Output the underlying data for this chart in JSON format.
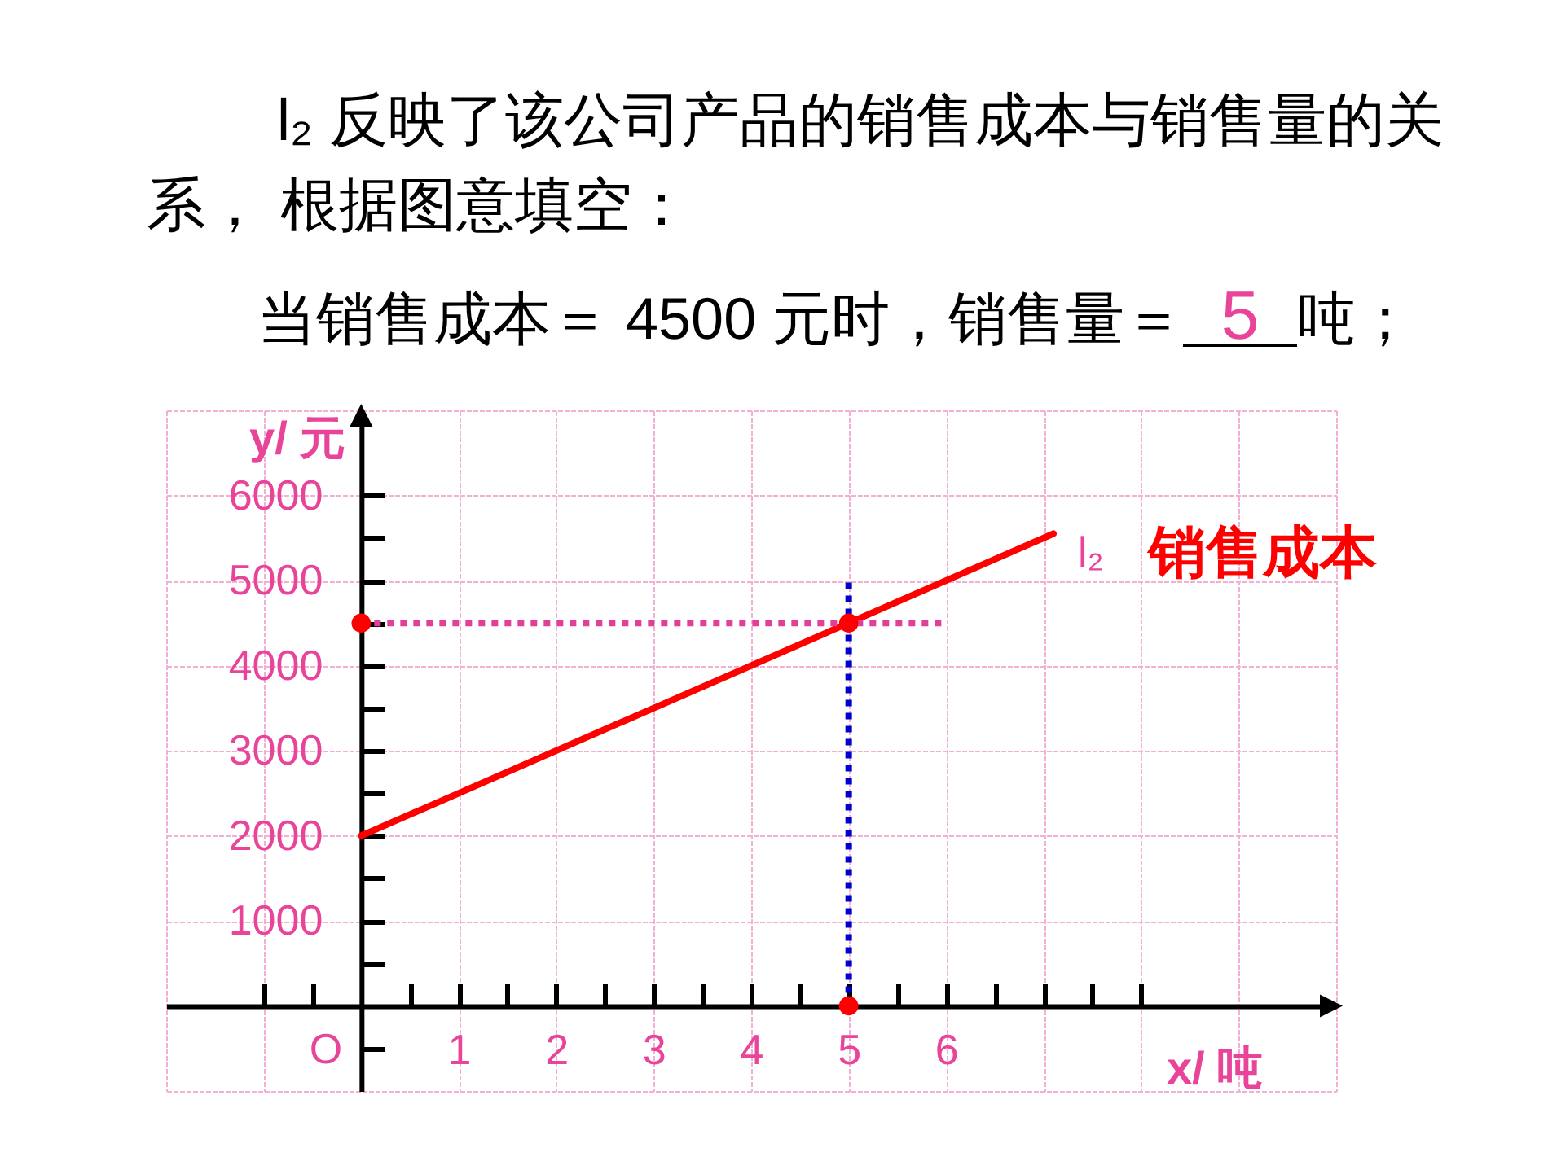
{
  "chart_data": {
    "type": "line",
    "title": "l₂ 反映了该公司产品的销售成本与销售量的关系， 根据图意填空：",
    "subtitle": "当销售成本＝ 4500 元时，销售量＝",
    "annotations": [
      "5",
      "吨；",
      "O",
      "销售成本"
    ],
    "xlabel": "x/ 吨",
    "ylabel": "y/ 元",
    "xlim": [
      -2,
      10
    ],
    "ylim": [
      -1000,
      7000
    ],
    "xticks": [
      {
        "value": -1,
        "label": null
      },
      {
        "value": -0.5,
        "label": null
      },
      {
        "value": 0.5,
        "label": null
      },
      1,
      {
        "value": 1.5,
        "label": null
      },
      2,
      {
        "value": 2.5,
        "label": null
      },
      3,
      {
        "value": 3.5,
        "label": null
      },
      4,
      {
        "value": 4.5,
        "label": null
      },
      5,
      {
        "value": 5.5,
        "label": null
      },
      6,
      {
        "value": 6.5,
        "label": null
      },
      {
        "value": 7,
        "label": null
      },
      {
        "value": 7.5,
        "label": null
      },
      {
        "value": 8,
        "label": null
      }
    ],
    "yticks": [
      {
        "value": -500,
        "label": null
      },
      {
        "value": 500,
        "label": null
      },
      1000,
      {
        "value": 1500,
        "label": null
      },
      2000,
      {
        "value": 2500,
        "label": null
      },
      3000,
      {
        "value": 3500,
        "label": null
      },
      4000,
      {
        "value": 4500,
        "label": null
      },
      5000,
      {
        "value": 5500,
        "label": null
      },
      6000
    ],
    "grid": true,
    "series": [
      {
        "name": "l₂",
        "color": "#ff0000",
        "x": [
          0,
          7.1
        ],
        "values": [
          2000,
          5550
        ]
      },
      {
        "color": "#e0409a",
        "line_style": "dotted",
        "x": [
          0,
          6
        ],
        "values": [
          4500,
          4500
        ]
      },
      {
        "color": "#0000cc",
        "line_style": "dotted",
        "x": [
          5,
          5
        ],
        "values": [
          0,
          5000
        ]
      },
      {
        "type": "scatter",
        "color": "#ff0000",
        "marker": "circle",
        "x": [
          0,
          5,
          5
        ],
        "values": [
          4500,
          4500,
          0
        ]
      }
    ]
  }
}
